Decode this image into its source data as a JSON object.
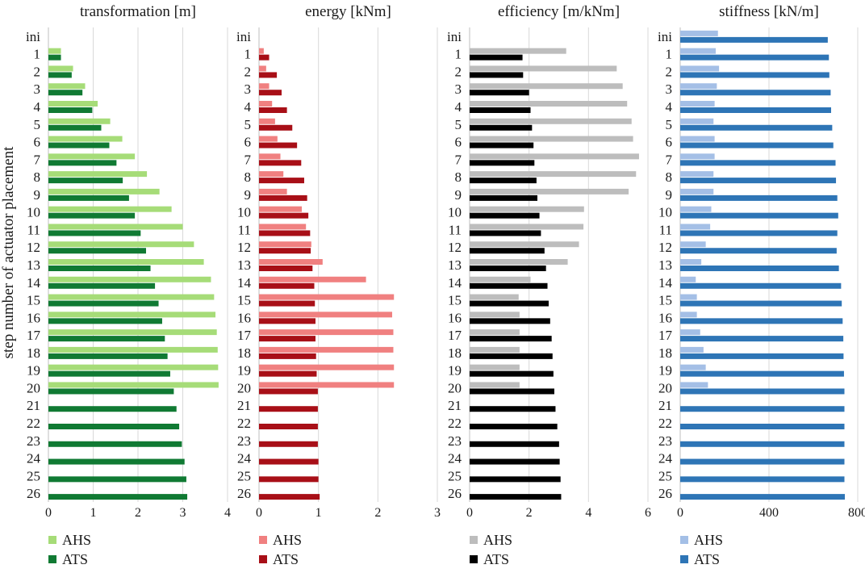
{
  "ylabel": "step number of actuator placement",
  "categories": [
    "ini",
    "1",
    "2",
    "3",
    "4",
    "5",
    "6",
    "7",
    "8",
    "9",
    "10",
    "11",
    "12",
    "13",
    "14",
    "15",
    "16",
    "17",
    "18",
    "19",
    "20",
    "21",
    "22",
    "23",
    "24",
    "25",
    "26"
  ],
  "chart_data": [
    {
      "type": "bar",
      "orientation": "horizontal",
      "title": "transformation [m]",
      "xlim": [
        0,
        4
      ],
      "xticks": [
        0,
        1,
        2,
        3,
        4
      ],
      "grid": true,
      "legend_position": "bottom",
      "series": [
        {
          "name": "AHS",
          "color": "#a6dc78",
          "values": [
            null,
            0.28,
            0.55,
            0.82,
            1.1,
            1.38,
            1.65,
            1.93,
            2.2,
            2.48,
            2.75,
            3.0,
            3.25,
            3.47,
            3.63,
            3.7,
            3.73,
            3.76,
            3.78,
            3.79,
            3.8,
            null,
            null,
            null,
            null,
            null,
            null
          ]
        },
        {
          "name": "ATS",
          "color": "#107a33",
          "values": [
            null,
            0.28,
            0.52,
            0.76,
            0.98,
            1.18,
            1.36,
            1.52,
            1.66,
            1.8,
            1.93,
            2.06,
            2.18,
            2.28,
            2.38,
            2.46,
            2.54,
            2.6,
            2.66,
            2.72,
            2.8,
            2.86,
            2.92,
            2.98,
            3.04,
            3.08,
            3.1
          ]
        }
      ]
    },
    {
      "type": "bar",
      "orientation": "horizontal",
      "title": "energy [kNm]",
      "xlim": [
        0,
        3
      ],
      "xticks": [
        0,
        1,
        2,
        3
      ],
      "grid": true,
      "legend_position": "bottom",
      "series": [
        {
          "name": "AHS",
          "color": "#f08080",
          "values": [
            null,
            0.08,
            0.12,
            0.17,
            0.22,
            0.27,
            0.31,
            0.36,
            0.41,
            0.47,
            0.72,
            0.79,
            0.88,
            1.07,
            1.8,
            2.27,
            2.24,
            2.26,
            2.26,
            2.27,
            2.27,
            null,
            null,
            null,
            null,
            null,
            null
          ]
        },
        {
          "name": "ATS",
          "color": "#a80f17",
          "values": [
            null,
            0.17,
            0.3,
            0.38,
            0.47,
            0.56,
            0.64,
            0.71,
            0.76,
            0.81,
            0.83,
            0.86,
            0.87,
            0.9,
            0.93,
            0.94,
            0.95,
            0.95,
            0.96,
            0.97,
            0.99,
            0.99,
            0.99,
            0.99,
            1.0,
            1.0,
            1.02
          ]
        }
      ]
    },
    {
      "type": "bar",
      "orientation": "horizontal",
      "title": "efficiency [m/kNm]",
      "xlim": [
        0,
        6
      ],
      "xticks": [
        0,
        2,
        4,
        6
      ],
      "grid": true,
      "legend_position": "bottom",
      "series": [
        {
          "name": "AHS",
          "color": "#bdbdbd",
          "values": [
            null,
            3.25,
            4.95,
            5.15,
            5.3,
            5.45,
            5.5,
            5.7,
            5.6,
            5.35,
            3.85,
            3.83,
            3.68,
            3.3,
            2.05,
            1.65,
            1.68,
            1.68,
            1.68,
            1.68,
            1.68,
            null,
            null,
            null,
            null,
            null,
            null
          ]
        },
        {
          "name": "ATS",
          "color": "#000000",
          "values": [
            null,
            1.78,
            1.8,
            2.0,
            2.05,
            2.1,
            2.15,
            2.18,
            2.25,
            2.28,
            2.35,
            2.4,
            2.52,
            2.57,
            2.62,
            2.66,
            2.71,
            2.76,
            2.79,
            2.82,
            2.85,
            2.89,
            2.95,
            3.01,
            3.03,
            3.06,
            3.08
          ]
        }
      ]
    },
    {
      "type": "bar",
      "orientation": "horizontal",
      "title": "stiffness [kN/m]",
      "xlim": [
        0,
        800
      ],
      "xticks": [
        0,
        400,
        800
      ],
      "grid": true,
      "legend_position": "bottom",
      "series": [
        {
          "name": "AHS",
          "color": "#a4bfe6",
          "values": [
            170,
            160,
            175,
            165,
            155,
            150,
            155,
            155,
            150,
            150,
            140,
            135,
            115,
            95,
            70,
            75,
            75,
            90,
            105,
            115,
            125,
            null,
            null,
            null,
            null,
            null,
            null
          ]
        },
        {
          "name": "ATS",
          "color": "#2e75b6",
          "values": [
            665,
            670,
            672,
            678,
            680,
            685,
            690,
            700,
            702,
            708,
            712,
            708,
            705,
            715,
            725,
            728,
            732,
            735,
            736,
            738,
            740,
            740,
            740,
            740,
            740,
            740,
            742
          ]
        }
      ]
    }
  ]
}
